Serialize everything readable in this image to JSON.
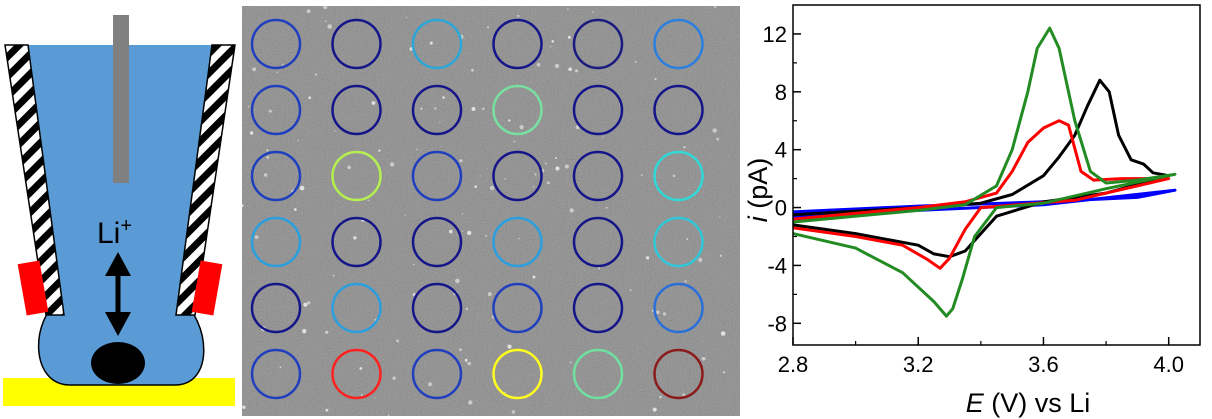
{
  "schematic": {
    "ion_label": "Li",
    "ion_charge": "+",
    "colors": {
      "electrolyte": "#5b9bd5",
      "electrode_wire": "#808080",
      "substrate": "#ffff00",
      "contact": "#ff0000",
      "particle": "#000000"
    }
  },
  "sem_image": {
    "background": "#8a8a8a",
    "grid": {
      "rows": 6,
      "cols": 6,
      "ring_colors": [
        [
          "#1f3fbf",
          "#15158a",
          "#2aa7d8",
          "#15158a",
          "#1a1a80",
          "#2a7fdf"
        ],
        [
          "#1f3fbf",
          "#15158a",
          "#15158a",
          "#78e0a0",
          "#15158a",
          "#15158a"
        ],
        [
          "#1f3fbf",
          "#b4f050",
          "#1f3fbf",
          "#15158a",
          "#15158a",
          "#30d8d8"
        ],
        [
          "#2a9fe0",
          "#15158a",
          "#15158a",
          "#2a9fe0",
          "#15158a",
          "#30c8d8"
        ],
        [
          "#15158a",
          "#2a9fe0",
          "#15158a",
          "#1f3fbf",
          "#15158a",
          "#2a6fd8"
        ],
        [
          "#1f3fbf",
          "#ff2020",
          "#1f3fbf",
          "#ffff20",
          "#70e0a0",
          "#8b1a1a"
        ]
      ]
    }
  },
  "chart_data": {
    "type": "line",
    "xlabel_italic": "E",
    "xlabel_rest": " (V) vs Li",
    "ylabel_italic": "i",
    "ylabel_rest": " (pA)",
    "xlim": [
      2.8,
      4.1
    ],
    "ylim": [
      -9.5,
      14
    ],
    "xticks": [
      "2.8",
      "3.2",
      "3.6",
      "4.0"
    ],
    "xtick_values": [
      2.8,
      3.2,
      3.6,
      4.0
    ],
    "yticks": [
      "-8",
      "-4",
      "0",
      "4",
      "8",
      "12"
    ],
    "ytick_values": [
      -8,
      -4,
      0,
      4,
      8,
      12
    ],
    "series": [
      {
        "color": "#0000ff",
        "anodic": [
          [
            2.8,
            -0.3
          ],
          [
            3.2,
            0.1
          ],
          [
            3.6,
            0.4
          ],
          [
            3.9,
            0.7
          ],
          [
            4.02,
            1.2
          ]
        ],
        "cathodic": [
          [
            4.02,
            1.2
          ],
          [
            3.6,
            0.2
          ],
          [
            3.2,
            -0.2
          ],
          [
            2.8,
            -0.6
          ]
        ]
      },
      {
        "color": "#000000",
        "anodic": [
          [
            2.8,
            -0.5
          ],
          [
            3.2,
            0.0
          ],
          [
            3.4,
            0.3
          ],
          [
            3.5,
            0.9
          ],
          [
            3.6,
            2.2
          ],
          [
            3.65,
            3.5
          ],
          [
            3.7,
            5.0
          ],
          [
            3.74,
            7.0
          ],
          [
            3.78,
            8.8
          ],
          [
            3.81,
            8.0
          ],
          [
            3.84,
            5.0
          ],
          [
            3.88,
            3.3
          ],
          [
            3.92,
            3.0
          ],
          [
            3.95,
            2.4
          ],
          [
            4.0,
            2.2
          ]
        ],
        "cathodic": [
          [
            4.0,
            2.2
          ],
          [
            3.8,
            1.0
          ],
          [
            3.6,
            0.4
          ],
          [
            3.45,
            -0.6
          ],
          [
            3.4,
            -1.8
          ],
          [
            3.35,
            -3.0
          ],
          [
            3.3,
            -3.4
          ],
          [
            3.25,
            -3.2
          ],
          [
            3.2,
            -2.6
          ],
          [
            3.0,
            -1.8
          ],
          [
            2.8,
            -1.2
          ]
        ]
      },
      {
        "color": "#ff0000",
        "anodic": [
          [
            2.8,
            -0.8
          ],
          [
            3.2,
            0.0
          ],
          [
            3.35,
            0.4
          ],
          [
            3.45,
            1.0
          ],
          [
            3.5,
            2.5
          ],
          [
            3.55,
            4.5
          ],
          [
            3.6,
            5.5
          ],
          [
            3.65,
            6.0
          ],
          [
            3.68,
            5.7
          ],
          [
            3.72,
            2.5
          ],
          [
            3.76,
            1.9
          ],
          [
            3.85,
            2.0
          ],
          [
            4.0,
            2.0
          ]
        ],
        "cathodic": [
          [
            4.0,
            2.0
          ],
          [
            3.7,
            0.5
          ],
          [
            3.4,
            0.0
          ],
          [
            3.35,
            -1.5
          ],
          [
            3.3,
            -3.5
          ],
          [
            3.27,
            -4.2
          ],
          [
            3.23,
            -3.6
          ],
          [
            3.15,
            -2.6
          ],
          [
            3.0,
            -2.0
          ],
          [
            2.8,
            -1.4
          ]
        ]
      },
      {
        "color": "#228b22",
        "anodic": [
          [
            2.8,
            -1.0
          ],
          [
            3.2,
            -0.2
          ],
          [
            3.35,
            0.2
          ],
          [
            3.45,
            1.5
          ],
          [
            3.5,
            4.0
          ],
          [
            3.55,
            8.0
          ],
          [
            3.58,
            11.0
          ],
          [
            3.62,
            12.4
          ],
          [
            3.65,
            11.0
          ],
          [
            3.7,
            6.0
          ],
          [
            3.75,
            2.5
          ],
          [
            3.8,
            1.7
          ],
          [
            3.9,
            1.9
          ],
          [
            4.02,
            2.3
          ]
        ],
        "cathodic": [
          [
            4.02,
            2.3
          ],
          [
            3.8,
            1.3
          ],
          [
            3.6,
            0.3
          ],
          [
            3.45,
            0.0
          ],
          [
            3.38,
            -2.0
          ],
          [
            3.34,
            -5.0
          ],
          [
            3.31,
            -7.0
          ],
          [
            3.29,
            -7.5
          ],
          [
            3.25,
            -6.5
          ],
          [
            3.15,
            -4.5
          ],
          [
            3.0,
            -2.8
          ],
          [
            2.8,
            -1.8
          ]
        ]
      }
    ]
  }
}
